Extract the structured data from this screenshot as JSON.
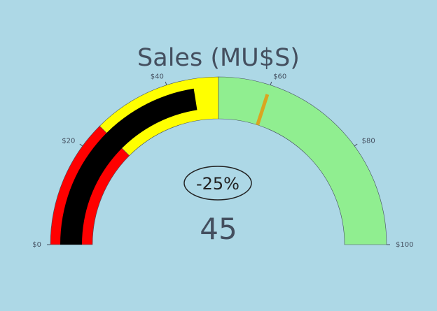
{
  "chart_data": {
    "type": "gauge",
    "title": "Sales (MU$S)",
    "value": 45,
    "value_label": "45",
    "delta": {
      "percent": -25,
      "label": "-25%"
    },
    "axis": {
      "range": [
        0,
        100
      ],
      "ticks": [
        0,
        20,
        40,
        60,
        80,
        100
      ],
      "tick_labels": [
        "$0",
        "$20",
        "$40",
        "$60",
        "$80",
        "$100"
      ]
    },
    "bands": [
      {
        "range": [
          0,
          25
        ],
        "color": "#ff0000"
      },
      {
        "range": [
          25,
          50
        ],
        "color": "#ffff00"
      },
      {
        "range": [
          50,
          100
        ],
        "color": "#90ee90"
      }
    ],
    "bar": {
      "value": 45,
      "color": "#000000"
    },
    "threshold": {
      "value": 60,
      "color": "#daa520"
    },
    "colors": {
      "background": "#add8e6",
      "text": "#444f5f",
      "delta_text": "#222222"
    }
  }
}
